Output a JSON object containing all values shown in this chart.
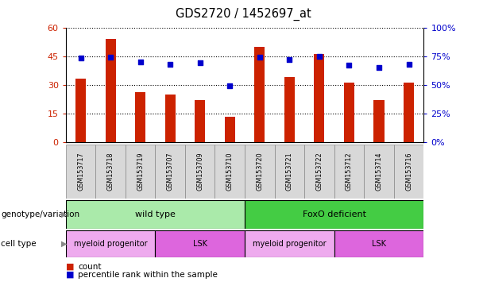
{
  "title": "GDS2720 / 1452697_at",
  "samples": [
    "GSM153717",
    "GSM153718",
    "GSM153719",
    "GSM153707",
    "GSM153709",
    "GSM153710",
    "GSM153720",
    "GSM153721",
    "GSM153722",
    "GSM153712",
    "GSM153714",
    "GSM153716"
  ],
  "counts": [
    33,
    54,
    26,
    25,
    22,
    13,
    50,
    34,
    46,
    31,
    22,
    31
  ],
  "percentiles": [
    73,
    74,
    70,
    68,
    69,
    49,
    74,
    72,
    75,
    67,
    65,
    68
  ],
  "bar_color": "#cc2200",
  "dot_color": "#0000cc",
  "left_ylim": [
    0,
    60
  ],
  "left_yticks": [
    0,
    15,
    30,
    45,
    60
  ],
  "right_ylim": [
    0,
    100
  ],
  "right_yticks": [
    0,
    25,
    50,
    75,
    100
  ],
  "left_tick_labels": [
    "0",
    "15",
    "30",
    "45",
    "60"
  ],
  "right_tick_labels": [
    "0%",
    "25%",
    "50%",
    "75%",
    "100%"
  ],
  "left_tick_color": "#cc2200",
  "right_tick_color": "#0000cc",
  "groups": [
    {
      "label": "wild type",
      "start": 0,
      "end": 6,
      "color": "#aaeaaa"
    },
    {
      "label": "FoxO deficient",
      "start": 6,
      "end": 12,
      "color": "#44cc44"
    }
  ],
  "cell_types": [
    {
      "label": "myeloid progenitor",
      "start": 0,
      "end": 3,
      "color": "#eeaaee"
    },
    {
      "label": "LSK",
      "start": 3,
      "end": 6,
      "color": "#dd66dd"
    },
    {
      "label": "myeloid progenitor",
      "start": 6,
      "end": 9,
      "color": "#eeaaee"
    },
    {
      "label": "LSK",
      "start": 9,
      "end": 12,
      "color": "#dd66dd"
    }
  ],
  "row_labels": [
    "genotype/variation",
    "cell type"
  ],
  "legend_count_label": "count",
  "legend_pct_label": "percentile rank within the sample",
  "bg_color": "#ffffff",
  "tick_label_bg": "#d8d8d8"
}
